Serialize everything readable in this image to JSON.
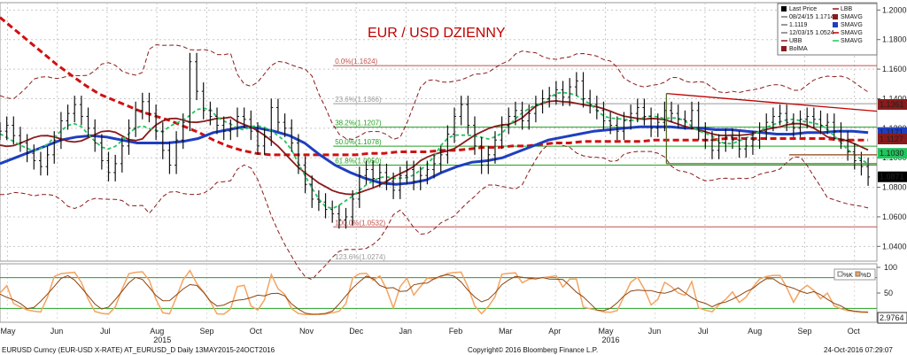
{
  "chart_data": {
    "type": "line",
    "title": "EUR / USD DZIENNY",
    "title_color": "#c00000",
    "x_months": [
      "May",
      "Jun",
      "Jul",
      "Aug",
      "Sep",
      "Oct",
      "Nov",
      "Dec",
      "Jan",
      "Feb",
      "Mar",
      "Apr",
      "May",
      "Jun",
      "Jul",
      "Aug",
      "Sep",
      "Oct"
    ],
    "x_years": [
      {
        "label": "2015",
        "after_month_index": 3
      },
      {
        "label": "2016",
        "after_month_index": 12
      }
    ],
    "y_ticks": [
      "1.2000",
      "1.1800",
      "1.1600",
      "1.1400",
      "1.1200",
      "1.1000",
      "1.0800",
      "1.0600",
      "1.0400"
    ],
    "ylim": [
      1.03,
      1.205
    ],
    "fib_levels": [
      {
        "label": "0.0%(1.1624)",
        "value": 1.1624,
        "color": "#c0504d"
      },
      {
        "label": "23.6%(1.1366)",
        "value": 1.1366,
        "color": "#999999"
      },
      {
        "label": "38.2%(1.1207)",
        "value": 1.1207,
        "color": "#22a022"
      },
      {
        "label": "50.0%(1.1078)",
        "value": 1.1078,
        "color": "#22a022"
      },
      {
        "label": "61.8%(1.0950)",
        "value": 1.095,
        "color": "#22a022"
      },
      {
        "label": "100.0%(1.0532)",
        "value": 1.0532,
        "color": "#c0504d"
      },
      {
        "label": "123.6%(1.0274)",
        "value": 1.0274,
        "color": "#999999"
      }
    ],
    "right_labels": [
      {
        "text": "1.1361",
        "value": 1.1361,
        "bg": "#8b1a1a",
        "fg": "#ffffff"
      },
      {
        "text": "1.1171",
        "value": 1.1171,
        "bg": "#1f3fbf",
        "fg": "#ffffff"
      },
      {
        "text": "1.1127",
        "value": 1.1127,
        "bg": "#8b1a1a",
        "fg": "#ffffff"
      },
      {
        "text": "1.1030",
        "value": 1.103,
        "bg": "#22c55e",
        "fg": "#000000"
      },
      {
        "text": "1.0871",
        "value": 1.0871,
        "bg": "#000000",
        "fg": "#ffffff"
      }
    ],
    "price": [
      1.118,
      1.122,
      1.115,
      1.11,
      1.103,
      1.098,
      1.094,
      1.102,
      1.112,
      1.125,
      1.13,
      1.136,
      1.128,
      1.12,
      1.11,
      1.098,
      1.09,
      1.096,
      1.108,
      1.12,
      1.132,
      1.138,
      1.13,
      1.118,
      1.105,
      1.095,
      1.112,
      1.124,
      1.165,
      1.145,
      1.132,
      1.128,
      1.122,
      1.118,
      1.12,
      1.128,
      1.126,
      1.118,
      1.108,
      1.114,
      1.134,
      1.124,
      1.12,
      1.11,
      1.095,
      1.082,
      1.072,
      1.07,
      1.065,
      1.062,
      1.058,
      1.06,
      1.072,
      1.088,
      1.092,
      1.086,
      1.09,
      1.084,
      1.078,
      1.088,
      1.092,
      1.084,
      1.088,
      1.092,
      1.096,
      1.102,
      1.116,
      1.128,
      1.136,
      1.122,
      1.108,
      1.095,
      1.102,
      1.112,
      1.122,
      1.128,
      1.132,
      1.125,
      1.13,
      1.136,
      1.14,
      1.142,
      1.146,
      1.141,
      1.148,
      1.152,
      1.14,
      1.136,
      1.132,
      1.125,
      1.122,
      1.118,
      1.125,
      1.13,
      1.134,
      1.128,
      1.12,
      1.124,
      1.132,
      1.13,
      1.126,
      1.125,
      1.132,
      1.118,
      1.112,
      1.105,
      1.11,
      1.114,
      1.112,
      1.106,
      1.108,
      1.112,
      1.118,
      1.124,
      1.128,
      1.13,
      1.124,
      1.12,
      1.126,
      1.128,
      1.126,
      1.122,
      1.124,
      1.118,
      1.112,
      1.104,
      1.098,
      1.094,
      1.087
    ],
    "sma_long": [
      1.195,
      1.187,
      1.179,
      1.171,
      1.163,
      1.156,
      1.149,
      1.143,
      1.139,
      1.135,
      1.131,
      1.128,
      1.125,
      1.121,
      1.117,
      1.112,
      1.108,
      1.105,
      1.103,
      1.102,
      1.102,
      1.102,
      1.102,
      1.102,
      1.102,
      1.102,
      1.103,
      1.103,
      1.104,
      1.104,
      1.104,
      1.105,
      1.105,
      1.106,
      1.107,
      1.107,
      1.108,
      1.108,
      1.109,
      1.11,
      1.11,
      1.111,
      1.111,
      1.111,
      1.111,
      1.111,
      1.112,
      1.112,
      1.112,
      1.112,
      1.112,
      1.113,
      1.113,
      1.113,
      1.113,
      1.113,
      1.113,
      1.113,
      1.113,
      1.112,
      1.112,
      1.112
    ],
    "sma_mid": [
      1.096,
      1.1,
      1.104,
      1.108,
      1.112,
      1.114,
      1.115,
      1.114,
      1.112,
      1.11,
      1.11,
      1.11,
      1.111,
      1.113,
      1.117,
      1.119,
      1.121,
      1.12,
      1.118,
      1.115,
      1.11,
      1.102,
      1.095,
      1.09,
      1.086,
      1.083,
      1.082,
      1.083,
      1.085,
      1.09,
      1.094,
      1.097,
      1.098,
      1.1,
      1.104,
      1.108,
      1.112,
      1.114,
      1.116,
      1.118,
      1.119,
      1.12,
      1.121,
      1.121,
      1.121,
      1.12,
      1.12,
      1.119,
      1.119,
      1.118,
      1.117,
      1.116,
      1.116,
      1.117,
      1.117,
      1.118,
      1.118,
      1.117
    ]
  },
  "indicator": {
    "y_ticks": [
      "100",
      "50"
    ],
    "value_label": "2.9764",
    "legend": [
      "%K",
      "%D"
    ]
  },
  "legend": {
    "items": [
      {
        "label": "Last Price",
        "color": "#000000",
        "kind": "box"
      },
      {
        "label": "08/24/15 1.1714",
        "color": "#777777",
        "kind": "line"
      },
      {
        "label": "1.1119",
        "color": "#777777",
        "kind": "line"
      },
      {
        "label": "12/03/15 1.0524",
        "color": "#777777",
        "kind": "line"
      },
      {
        "label": "UBB",
        "color": "#8b1a1a",
        "kind": "line"
      },
      {
        "label": "BolMA",
        "color": "#8b1a1a",
        "kind": "box"
      },
      {
        "label": "LBB",
        "color": "#8b1a1a",
        "kind": "line"
      },
      {
        "label": "SMAVG",
        "color": "#8b1a1a",
        "kind": "box"
      },
      {
        "label": "SMAVG",
        "color": "#1f3fbf",
        "kind": "box"
      },
      {
        "label": "SMAVG",
        "color": "#c00000",
        "kind": "line"
      },
      {
        "label": "SMAVG",
        "color": "#22c55e",
        "kind": "line"
      }
    ]
  },
  "footer": {
    "left": "EURUSD Curncy (EUR-USD X-RATE) AT_EURUSD_D  Daily 13MAY2015-24OCT2016",
    "center": "Copyright© 2016 Bloomberg Finance L.P.",
    "right": "24-Oct-2016 07:29:07"
  }
}
